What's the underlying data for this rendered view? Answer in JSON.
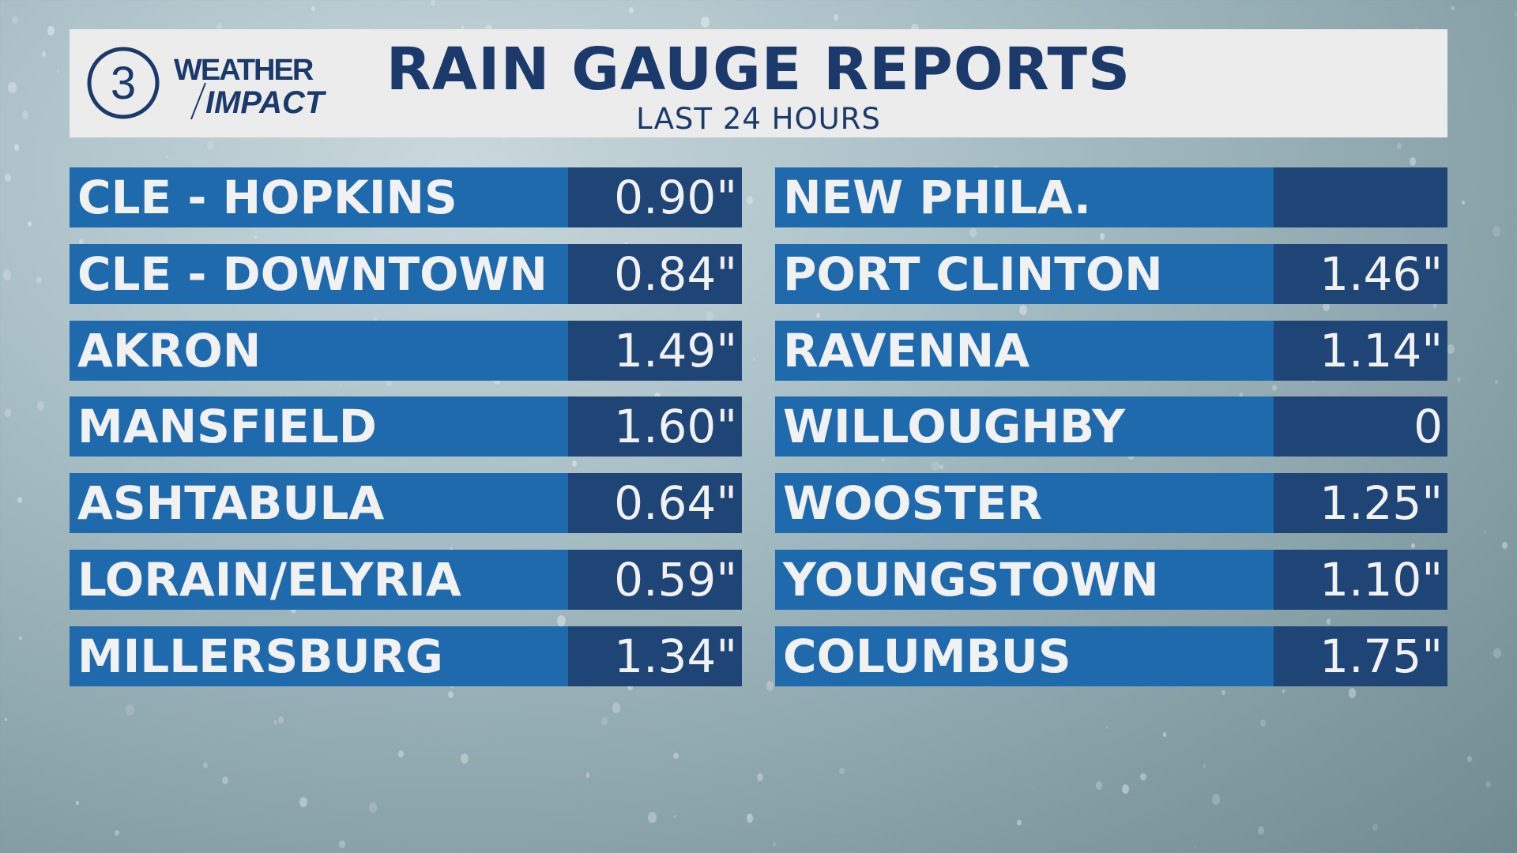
{
  "header": {
    "logo_number": "3",
    "logo_line1": "WEATHER",
    "logo_line2": "IMPACT",
    "title": "RAIN GAUGE REPORTS",
    "subtitle": "LAST 24 HOURS"
  },
  "colors": {
    "name_bg": "#1f6aad",
    "value_bg": "#1f4577",
    "header_bg": "#ececec",
    "title": "#1b3a6b"
  },
  "left_column": [
    {
      "location": "CLE - HOPKINS",
      "amount": "0.90\""
    },
    {
      "location": "CLE - DOWNTOWN",
      "amount": "0.84\""
    },
    {
      "location": "AKRON",
      "amount": "1.49\""
    },
    {
      "location": "MANSFIELD",
      "amount": "1.60\""
    },
    {
      "location": "ASHTABULA",
      "amount": "0.64\""
    },
    {
      "location": "LORAIN/ELYRIA",
      "amount": "0.59\""
    },
    {
      "location": "MILLERSBURG",
      "amount": "1.34\""
    }
  ],
  "right_column": [
    {
      "location": "NEW PHILA.",
      "amount": ""
    },
    {
      "location": "PORT CLINTON",
      "amount": "1.46\""
    },
    {
      "location": "RAVENNA",
      "amount": "1.14\""
    },
    {
      "location": "WILLOUGHBY",
      "amount": "0"
    },
    {
      "location": "WOOSTER",
      "amount": "1.25\""
    },
    {
      "location": "YOUNGSTOWN",
      "amount": "1.10\""
    },
    {
      "location": "COLUMBUS",
      "amount": "1.75\""
    }
  ]
}
